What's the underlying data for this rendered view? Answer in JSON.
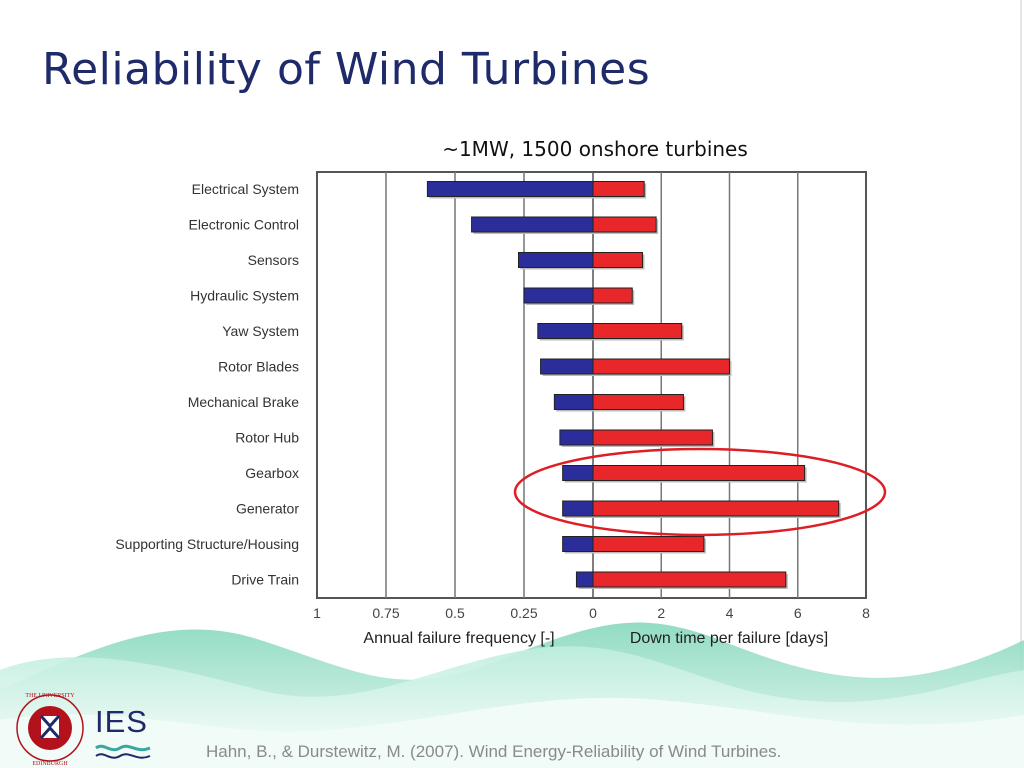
{
  "slide": {
    "title": "Reliability of Wind Turbines",
    "subtitle": "~1MW, 1500 onshore turbines",
    "citation": "Hahn, B., & Durstewitz, M. (2007). Wind Energy-Reliability of Wind Turbines.",
    "logo_text": "IES",
    "seal_text": "THE UNIVERSITY OF EDINBURGH"
  },
  "chart_data": {
    "type": "bar",
    "orientation": "horizontal-butterfly",
    "categories": [
      "Electrical System",
      "Electronic Control",
      "Sensors",
      "Hydraulic System",
      "Yaw System",
      "Rotor Blades",
      "Mechanical Brake",
      "Rotor Hub",
      "Gearbox",
      "Generator",
      "Supporting Structure/Housing",
      "Drive Train"
    ],
    "series": [
      {
        "name": "Annual failure frequency [-]",
        "side": "left",
        "color": "#2b2e9a",
        "values": [
          0.6,
          0.44,
          0.27,
          0.25,
          0.2,
          0.19,
          0.14,
          0.12,
          0.11,
          0.11,
          0.11,
          0.06
        ]
      },
      {
        "name": "Down time per failure [days]",
        "side": "right",
        "color": "#e8272a",
        "values": [
          1.5,
          1.85,
          1.45,
          1.15,
          2.6,
          4.0,
          2.65,
          3.5,
          6.2,
          7.2,
          3.25,
          5.65
        ]
      }
    ],
    "left_ticks": [
      "1",
      "0.75",
      "0.5",
      "0.25",
      "0"
    ],
    "right_ticks": [
      "2",
      "4",
      "6",
      "8"
    ],
    "xlabel_left": "Annual failure frequency [-]",
    "xlabel_right": "Down time per failure [days]",
    "left_xlim": [
      0,
      1
    ],
    "right_xlim": [
      0,
      8
    ],
    "grid": true,
    "highlight": [
      "Gearbox",
      "Generator"
    ],
    "highlight_color": "#dd1e24"
  },
  "colors": {
    "title": "#1f2a6b",
    "frequency_bar": "#2b2e9a",
    "downtime_bar": "#e8272a",
    "wave_light": "#cdeee0",
    "wave_mid": "#8fdcc0",
    "seal": "#b3121c"
  }
}
